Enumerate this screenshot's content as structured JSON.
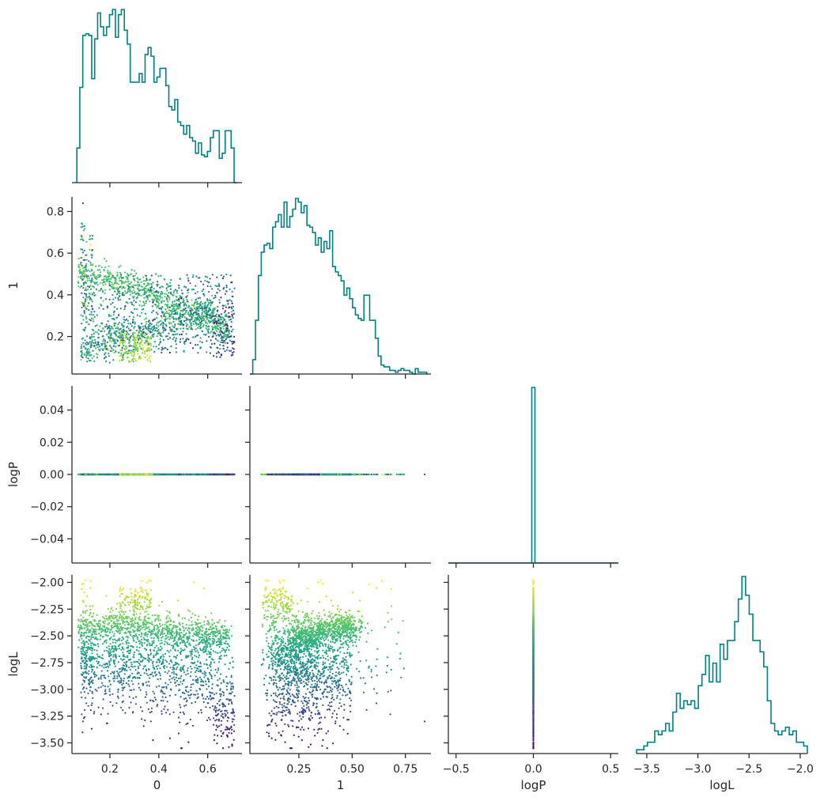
{
  "chart_data": {
    "type": "scatter",
    "title": "",
    "kind": "corner-plot",
    "variables": [
      "0",
      "1",
      "logP",
      "logL"
    ],
    "colormap": "viridis",
    "color_by": "logL",
    "hist_color": "#008080",
    "grid": false,
    "legend": "none",
    "axes": [
      {
        "name": "0",
        "range": [
          0.045,
          0.74
        ],
        "ticks": [
          0.2,
          0.4,
          0.6
        ],
        "tick_labels": [
          "0.2",
          "0.4",
          "0.6"
        ],
        "label": "0"
      },
      {
        "name": "1",
        "range": [
          0.02,
          0.87
        ],
        "ticks": [
          0.25,
          0.5,
          0.75
        ],
        "tick_labels": [
          "0.25",
          "0.50",
          "0.75"
        ],
        "label": "1",
        "y_ticks": [
          0.2,
          0.4,
          0.6,
          0.8
        ],
        "y_tick_labels": [
          "0.2",
          "0.4",
          "0.6",
          "0.8"
        ]
      },
      {
        "name": "logP",
        "range": [
          -0.055,
          0.055
        ],
        "ticks": [
          -0.5,
          0.0,
          0.5
        ],
        "tick_labels": [
          "−0.5",
          "0.0",
          "0.5"
        ],
        "x_range": [
          -0.55,
          0.55
        ],
        "label": "logP",
        "y_ticks": [
          -0.04,
          -0.02,
          0.0,
          0.02,
          0.04
        ],
        "y_tick_labels": [
          "−0.04",
          "−0.02",
          "0.00",
          "0.02",
          "0.04"
        ]
      },
      {
        "name": "logL",
        "range": [
          -3.6,
          -1.93
        ],
        "ticks": [
          -3.5,
          -3.0,
          -2.5,
          -2.0
        ],
        "tick_labels": [
          "−3.5",
          "−3.0",
          "−2.5",
          "−2.0"
        ],
        "label": "logL",
        "y_ticks": [
          -3.5,
          -3.25,
          -3.0,
          -2.75,
          -2.5,
          -2.25,
          -2.0
        ],
        "y_tick_labels": [
          "−3.50",
          "−3.25",
          "−3.00",
          "−2.75",
          "−2.50",
          "−2.25",
          "−2.00"
        ]
      }
    ],
    "histograms": {
      "0": {
        "range": [
          0.065,
          0.72
        ],
        "counts": [
          20,
          55,
          85,
          86,
          85,
          60,
          83,
          98,
          90,
          85,
          90,
          97,
          100,
          84,
          97,
          100,
          88,
          80,
          58,
          58,
          58,
          63,
          58,
          74,
          78,
          73,
          58,
          61,
          66,
          66,
          56,
          44,
          42,
          48,
          35,
          33,
          28,
          33,
          26,
          24,
          17,
          23,
          16,
          15,
          18,
          26,
          30,
          30,
          14,
          17,
          30,
          30,
          20,
          0
        ]
      },
      "1": {
        "range": [
          0.02,
          0.85
        ],
        "counts": [
          0,
          8,
          30,
          55,
          68,
          72,
          73,
          70,
          82,
          85,
          89,
          82,
          96,
          82,
          88,
          92,
          98,
          96,
          90,
          94,
          83,
          82,
          79,
          72,
          76,
          68,
          74,
          70,
          80,
          60,
          57,
          55,
          52,
          44,
          48,
          42,
          37,
          33,
          31,
          30,
          44,
          44,
          30,
          30,
          20,
          10,
          5,
          4,
          4,
          2,
          2,
          1,
          2,
          3,
          2,
          2,
          1,
          0,
          3,
          1,
          1,
          1
        ]
      },
      "logP": {
        "range": [
          -0.55,
          0.55
        ],
        "spike": {
          "x": 0.0,
          "value": 100
        }
      },
      "logL": {
        "range": [
          -3.6,
          -1.93
        ],
        "counts": [
          1,
          1,
          2,
          3,
          3,
          6,
          5,
          6,
          8,
          6,
          11,
          16,
          12,
          14,
          13,
          14,
          12,
          18,
          21,
          26,
          19,
          24,
          19,
          29,
          25,
          30,
          30,
          35,
          41,
          47,
          42,
          37,
          30,
          30,
          27,
          23,
          14,
          8,
          6,
          5,
          6,
          7,
          5,
          6,
          3,
          3,
          2
        ]
      }
    },
    "scatter_panels": [
      {
        "x": "0",
        "y": "1"
      },
      {
        "x": "0",
        "y": "logP"
      },
      {
        "x": "1",
        "y": "logP"
      },
      {
        "x": "0",
        "y": "logL"
      },
      {
        "x": "1",
        "y": "logL"
      },
      {
        "x": "logP",
        "y": "logL"
      }
    ]
  }
}
